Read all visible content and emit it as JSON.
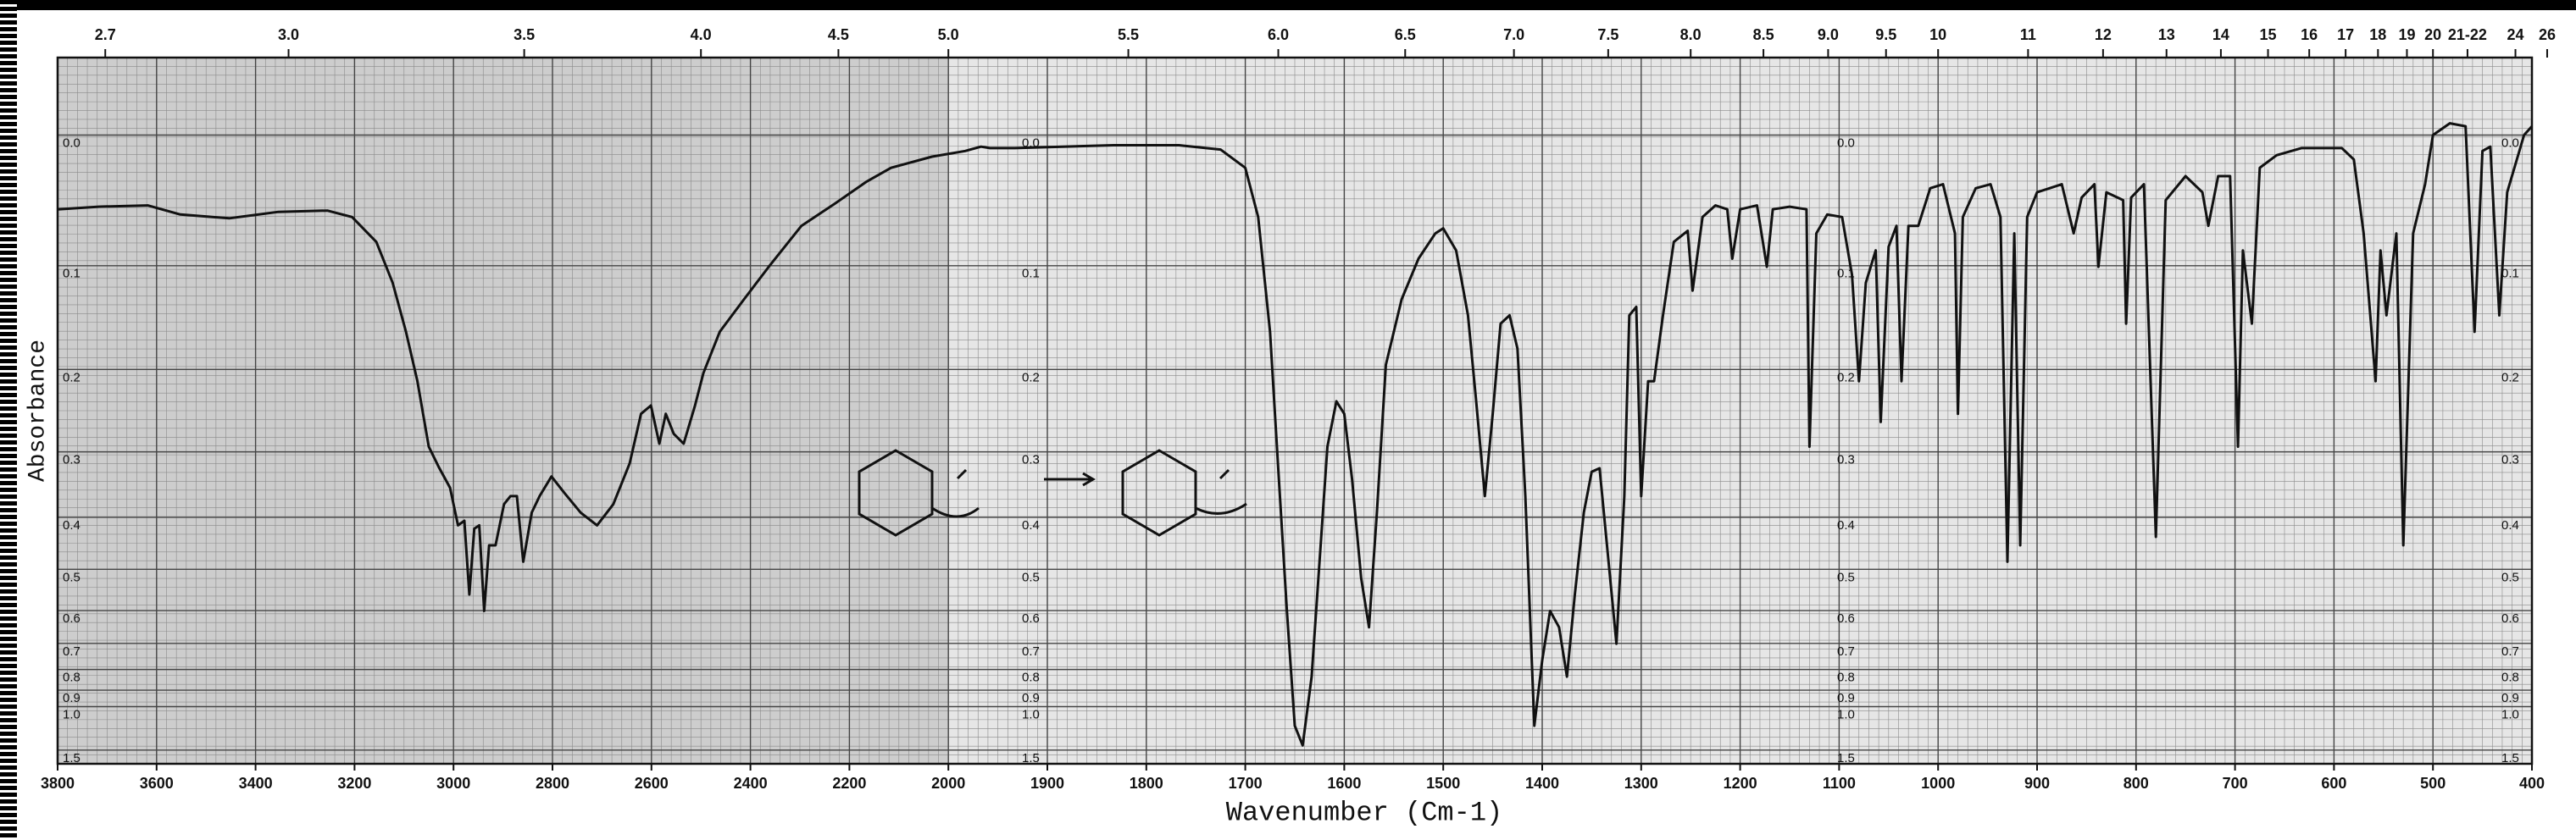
{
  "chart_data": {
    "type": "line",
    "xlabel": "Wavenumber (Cm-1)",
    "ylabel": "Absorbance",
    "xscale": "tick-linear",
    "yscale": "transmittance",
    "grid": true,
    "color": "#111111",
    "xlim": [
      3800,
      400
    ],
    "xticks": [
      3800,
      3600,
      3400,
      3200,
      3000,
      2800,
      2600,
      2400,
      2200,
      2000,
      1900,
      1800,
      1700,
      1600,
      1500,
      1400,
      1300,
      1200,
      1100,
      1000,
      900,
      800,
      700,
      600,
      500,
      400
    ],
    "xticks_top": [
      2.7,
      {
        "value": 3,
        "label": "3.0"
      },
      3.5,
      {
        "value": 4,
        "label": "4.0"
      },
      4.5,
      {
        "value": 5,
        "label": "5.0"
      },
      5.5,
      {
        "value": 6,
        "label": "6.0"
      },
      6.5,
      {
        "value": 7,
        "label": "7.0"
      },
      7.5,
      {
        "value": 8,
        "label": "8.0"
      },
      8.5,
      {
        "value": 9,
        "label": "9.0"
      },
      9.5,
      10,
      11,
      12,
      13,
      14,
      15,
      16,
      17,
      18,
      19,
      20,
      {
        "value": 21.5,
        "label": "21-22"
      },
      24,
      26
    ],
    "ylim": [
      -0.05,
      2
    ],
    "yticks": [
      {
        "value": 0,
        "label": "0.0"
      },
      0.1,
      0.2,
      0.3,
      0.4,
      0.5,
      0.6,
      0.7,
      0.8,
      0.9,
      {
        "value": 1,
        "label": "1.0"
      },
      1.5
    ],
    "x": [
      3800,
      3717,
      3618,
      3552,
      3453,
      3354,
      3255,
      3205,
      3156,
      3123,
      3096,
      3073,
      3050,
      3030,
      3007,
      2991,
      2978,
      2968,
      2958,
      2948,
      2938,
      2928,
      2915,
      2898,
      2885,
      2872,
      2859,
      2842,
      2826,
      2802,
      2776,
      2743,
      2710,
      2677,
      2644,
      2621,
      2601,
      2584,
      2571,
      2555,
      2535,
      2512,
      2495,
      2462,
      2413,
      2363,
      2297,
      2231,
      2165,
      2116,
      2033,
      1983,
      1967,
      1958,
      1933,
      1833,
      1767,
      1725,
      1700,
      1687,
      1675,
      1667,
      1658,
      1650,
      1642,
      1633,
      1625,
      1617,
      1608,
      1600,
      1592,
      1583,
      1575,
      1567,
      1558,
      1542,
      1525,
      1508,
      1500,
      1487,
      1475,
      1467,
      1458,
      1450,
      1442,
      1433,
      1425,
      1417,
      1408,
      1400,
      1392,
      1383,
      1375,
      1367,
      1358,
      1350,
      1342,
      1333,
      1325,
      1317,
      1312,
      1305,
      1300,
      1293,
      1287,
      1278,
      1267,
      1253,
      1248,
      1238,
      1225,
      1213,
      1208,
      1200,
      1183,
      1173,
      1167,
      1150,
      1133,
      1130,
      1123,
      1112,
      1097,
      1087,
      1080,
      1073,
      1063,
      1058,
      1050,
      1042,
      1037,
      1030,
      1020,
      1008,
      995,
      983,
      980,
      975,
      962,
      947,
      937,
      930,
      923,
      917,
      910,
      900,
      875,
      863,
      855,
      842,
      838,
      830,
      813,
      810,
      805,
      792,
      780,
      770,
      750,
      733,
      727,
      717,
      705,
      697,
      692,
      683,
      675,
      658,
      633,
      592,
      580,
      570,
      558,
      553,
      547,
      537,
      530,
      520,
      508,
      500,
      483,
      467,
      458,
      450,
      442,
      433,
      425,
      408,
      400
    ],
    "values": [
      0.054,
      0.052,
      0.051,
      0.058,
      0.061,
      0.056,
      0.055,
      0.06,
      0.08,
      0.115,
      0.161,
      0.213,
      0.293,
      0.321,
      0.352,
      0.414,
      0.406,
      0.558,
      0.42,
      0.414,
      0.601,
      0.451,
      0.451,
      0.378,
      0.365,
      0.365,
      0.484,
      0.392,
      0.365,
      0.335,
      0.36,
      0.392,
      0.414,
      0.378,
      0.316,
      0.251,
      0.241,
      0.289,
      0.251,
      0.276,
      0.289,
      0.241,
      0.204,
      0.161,
      0.13,
      0.101,
      0.067,
      0.05,
      0.033,
      0.023,
      0.015,
      0.011,
      0.008,
      0.009,
      0.009,
      0.007,
      0.007,
      0.01,
      0.023,
      0.06,
      0.161,
      0.316,
      0.601,
      1.156,
      1.41,
      0.832,
      0.484,
      0.293,
      0.236,
      0.251,
      0.34,
      0.519,
      0.648,
      0.392,
      0.195,
      0.13,
      0.094,
      0.073,
      0.069,
      0.087,
      0.145,
      0.232,
      0.365,
      0.251,
      0.153,
      0.145,
      0.178,
      0.365,
      1.156,
      0.762,
      0.601,
      0.648,
      0.832,
      0.558,
      0.392,
      0.328,
      0.323,
      0.484,
      0.701,
      0.365,
      0.145,
      0.137,
      0.365,
      0.213,
      0.213,
      0.145,
      0.08,
      0.071,
      0.122,
      0.06,
      0.051,
      0.054,
      0.094,
      0.054,
      0.051,
      0.101,
      0.054,
      0.052,
      0.054,
      0.293,
      0.073,
      0.058,
      0.06,
      0.108,
      0.213,
      0.115,
      0.087,
      0.261,
      0.084,
      0.067,
      0.213,
      0.067,
      0.067,
      0.038,
      0.035,
      0.073,
      0.251,
      0.06,
      0.038,
      0.035,
      0.06,
      0.484,
      0.073,
      0.451,
      0.06,
      0.041,
      0.035,
      0.073,
      0.045,
      0.035,
      0.101,
      0.041,
      0.047,
      0.153,
      0.045,
      0.035,
      0.435,
      0.047,
      0.029,
      0.041,
      0.067,
      0.029,
      0.029,
      0.293,
      0.087,
      0.153,
      0.023,
      0.014,
      0.009,
      0.009,
      0.017,
      0.073,
      0.213,
      0.087,
      0.145,
      0.073,
      0.451,
      0.073,
      0.035,
      0,
      -0.008,
      -0.006,
      0.161,
      0.011,
      0.008,
      0.145,
      0.041,
      0,
      -0.006
    ]
  }
}
